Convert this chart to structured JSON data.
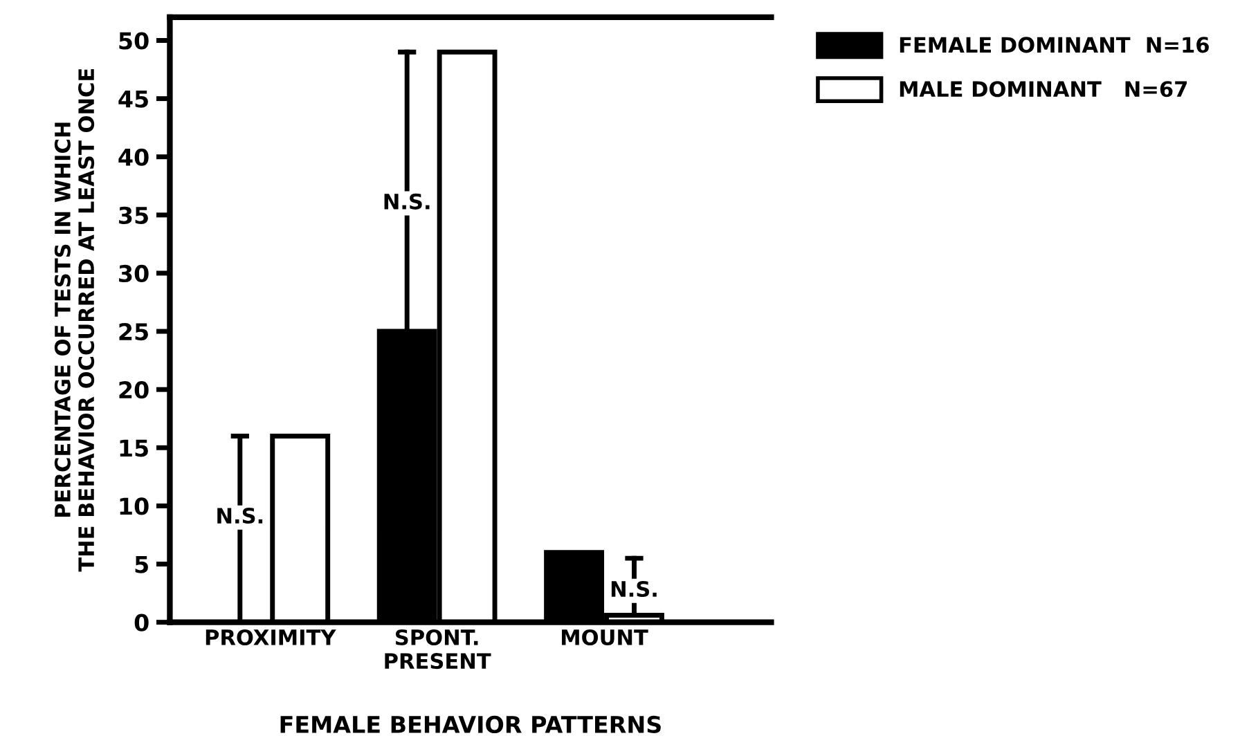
{
  "chart_data": {
    "type": "bar",
    "xlabel": "FEMALE BEHAVIOR PATTERNS",
    "ylabel": "PERCENTAGE OF TESTS IN WHICH\nTHE BEHAVIOR OCCURRED AT LEAST ONCE",
    "categories": [
      "PROXIMITY",
      "SPONT.\nPRESENT",
      "MOUNT"
    ],
    "series": [
      {
        "name": "FEMALE DOMINANT  N=16",
        "color": "#000000",
        "values": [
          0,
          25,
          6
        ],
        "errors": [
          [
            0,
            16
          ],
          [
            25,
            49
          ],
          null
        ]
      },
      {
        "name": "MALE DOMINANT   N=67",
        "color": "#ffffff",
        "values": [
          16,
          49,
          0.6
        ],
        "errors": [
          null,
          null,
          [
            0.6,
            5.5
          ]
        ]
      }
    ],
    "ylim": [
      0,
      52
    ],
    "yticks": [
      0,
      5,
      10,
      15,
      20,
      25,
      30,
      35,
      40,
      45,
      50
    ],
    "annotations": [
      {
        "text": "N.S.",
        "x": "PROXIMITY",
        "y": 9
      },
      {
        "text": "N.S.",
        "x": "SPONT.\nPRESENT",
        "y": 36
      },
      {
        "text": "N.S.",
        "x": "MOUNT",
        "y": 2.7
      }
    ],
    "legend": "top right",
    "grid": false
  }
}
